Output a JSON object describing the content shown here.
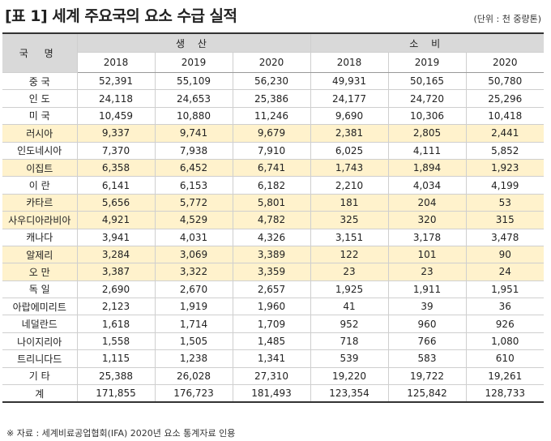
{
  "title": "[표 1] 세계 주요국의 요소 수급 실적",
  "unit": "(단위 : 천 중량톤)",
  "source": "※ 자료 : 세계비료공업협회(IFA) 2020년 요소 통계자료 인용",
  "header": {
    "country": "국 명",
    "production": "생   산",
    "consumption": "소   비",
    "years": [
      "2018",
      "2019",
      "2020",
      "2018",
      "2019",
      "2020"
    ]
  },
  "rows": [
    {
      "name": "중 국",
      "values": [
        "52,391",
        "55,109",
        "56,230",
        "49,931",
        "50,165",
        "50,780"
      ],
      "highlight": false
    },
    {
      "name": "인 도",
      "values": [
        "24,118",
        "24,653",
        "25,386",
        "24,177",
        "24,720",
        "25,296"
      ],
      "highlight": false
    },
    {
      "name": "미 국",
      "values": [
        "10,459",
        "10,880",
        "11,246",
        "9,690",
        "10,306",
        "10,418"
      ],
      "highlight": false
    },
    {
      "name": "러시아",
      "values": [
        "9,337",
        "9,741",
        "9,679",
        "2,381",
        "2,805",
        "2,441"
      ],
      "highlight": true
    },
    {
      "name": "인도네시아",
      "values": [
        "7,370",
        "7,938",
        "7,910",
        "6,025",
        "4,111",
        "5,852"
      ],
      "highlight": false
    },
    {
      "name": "이집트",
      "values": [
        "6,358",
        "6,452",
        "6,741",
        "1,743",
        "1,894",
        "1,923"
      ],
      "highlight": true
    },
    {
      "name": "이 란",
      "values": [
        "6,141",
        "6,153",
        "6,182",
        "2,210",
        "4,034",
        "4,199"
      ],
      "highlight": false
    },
    {
      "name": "카타르",
      "values": [
        "5,656",
        "5,772",
        "5,801",
        "181",
        "204",
        "53"
      ],
      "highlight": true
    },
    {
      "name": "사우디아라비아",
      "values": [
        "4,921",
        "4,529",
        "4,782",
        "325",
        "320",
        "315"
      ],
      "highlight": true
    },
    {
      "name": "캐나다",
      "values": [
        "3,941",
        "4,031",
        "4,326",
        "3,151",
        "3,178",
        "3,478"
      ],
      "highlight": false
    },
    {
      "name": "알제리",
      "values": [
        "3,284",
        "3,069",
        "3,389",
        "122",
        "101",
        "90"
      ],
      "highlight": true
    },
    {
      "name": "오 만",
      "values": [
        "3,387",
        "3,322",
        "3,359",
        "23",
        "23",
        "24"
      ],
      "highlight": true
    },
    {
      "name": "독 일",
      "values": [
        "2,690",
        "2,670",
        "2,657",
        "1,925",
        "1,911",
        "1,951"
      ],
      "highlight": false
    },
    {
      "name": "아랍에미리트",
      "values": [
        "2,123",
        "1,919",
        "1,960",
        "41",
        "39",
        "36"
      ],
      "highlight": false
    },
    {
      "name": "네덜란드",
      "values": [
        "1,618",
        "1,714",
        "1,709",
        "952",
        "960",
        "926"
      ],
      "highlight": false
    },
    {
      "name": "나이지리아",
      "values": [
        "1,558",
        "1,505",
        "1,485",
        "718",
        "766",
        "1,080"
      ],
      "highlight": false
    },
    {
      "name": "트리니다드",
      "values": [
        "1,115",
        "1,238",
        "1,341",
        "539",
        "583",
        "610"
      ],
      "highlight": false
    },
    {
      "name": "기   타",
      "values": [
        "25,388",
        "26,028",
        "27,310",
        "19,220",
        "19,722",
        "19,261"
      ],
      "highlight": false
    },
    {
      "name": "계",
      "values": [
        "171,855",
        "176,723",
        "181,493",
        "123,354",
        "125,842",
        "128,733"
      ],
      "highlight": false,
      "total": true
    }
  ]
}
